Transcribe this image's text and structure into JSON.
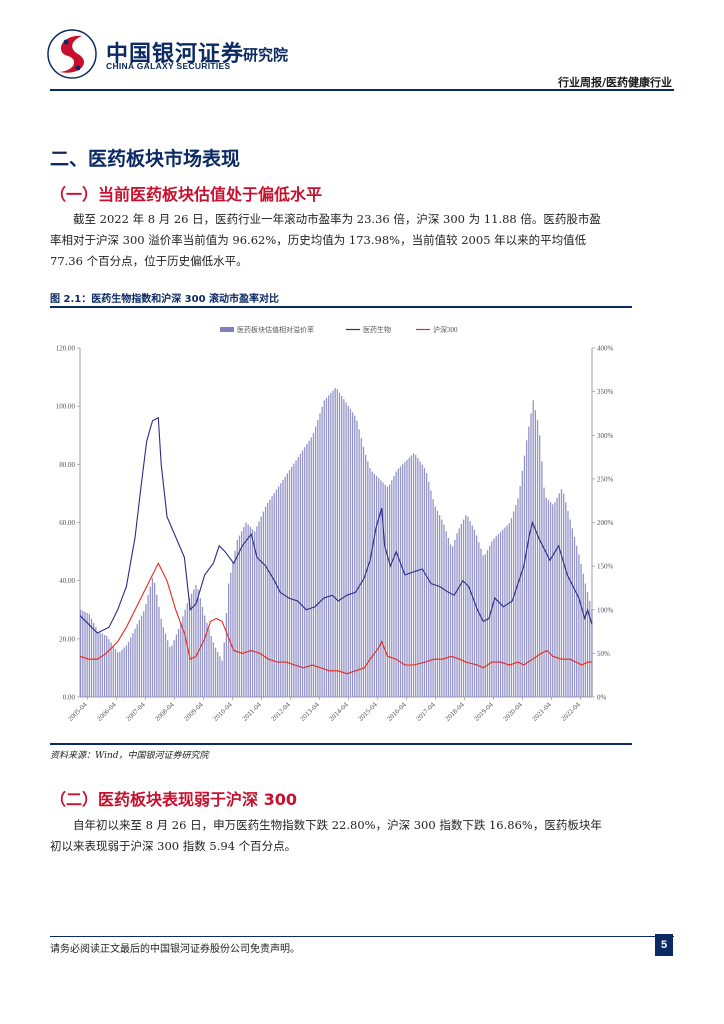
{
  "header": {
    "brand_cn": "中国银河证券",
    "brand_en": "CHINA GALAXY SECURITIES",
    "institute": "研究院",
    "category": "行业周报/医药健康行业"
  },
  "section": {
    "title": "二、医药板块市场表现",
    "sub1": {
      "title": "（一）当前医药板块估值处于偏低水平",
      "paragraph": "截至 2022 年 8 月 26 日，医药行业一年滚动市盈率为 23.36 倍，沪深 300 为 11.88 倍。医药股市盈率相对于沪深 300 溢价率当前值为 96.62%，历史均值为 173.98%，当前值较 2005 年以来的平均值低 77.36 个百分点，位于历史偏低水平。"
    },
    "figure": {
      "title": "图 2.1：医药生物指数和沪深 300 滚动市盈率对比",
      "source": "资料来源：Wind，中国银河证券研究院"
    },
    "sub2": {
      "title": "（二）医药板块表现弱于沪深 300",
      "paragraph": "自年初以来至 8 月 26 日，申万医药生物指数下跌 22.80%，沪深 300 指数下跌 16.86%，医药板块年初以来表现弱于沪深 300 指数 5.94 个百分点。"
    }
  },
  "chart_data": {
    "type": "bar+line",
    "legend": [
      "医药板块估值相对溢价率",
      "医药生物",
      "沪深300"
    ],
    "legend_position": "top",
    "colors": {
      "premium": "#8080c0",
      "pharma": "#2b2b8a",
      "hs300": "#e8291c"
    },
    "y_left": {
      "ticks": [
        "0.00",
        "20.00",
        "40.00",
        "60.00",
        "80.00",
        "100.00",
        "120.00"
      ],
      "lim": [
        0,
        120
      ]
    },
    "y_right": {
      "ticks": [
        "0%",
        "50%",
        "100%",
        "150%",
        "200%",
        "250%",
        "300%",
        "350%",
        "400%"
      ],
      "lim": [
        0,
        400
      ]
    },
    "x_ticks": [
      "2005-04",
      "2006-04",
      "2007-04",
      "2008-04",
      "2009-04",
      "2010-04",
      "2011-04",
      "2012-04",
      "2013-04",
      "2014-04",
      "2015-04",
      "2016-04",
      "2017-04",
      "2018-04",
      "2019-04",
      "2020-04",
      "2021-04",
      "2022-04"
    ],
    "x_range": [
      2005.0,
      2022.65
    ],
    "pharma_points": [
      [
        2005.0,
        28
      ],
      [
        2005.3,
        25
      ],
      [
        2005.6,
        22
      ],
      [
        2006.0,
        24
      ],
      [
        2006.3,
        30
      ],
      [
        2006.6,
        38
      ],
      [
        2006.9,
        55
      ],
      [
        2007.1,
        72
      ],
      [
        2007.3,
        88
      ],
      [
        2007.5,
        95
      ],
      [
        2007.7,
        96
      ],
      [
        2007.8,
        80
      ],
      [
        2008.0,
        62
      ],
      [
        2008.3,
        55
      ],
      [
        2008.6,
        48
      ],
      [
        2008.8,
        30
      ],
      [
        2009.0,
        32
      ],
      [
        2009.3,
        42
      ],
      [
        2009.6,
        46
      ],
      [
        2009.8,
        52
      ],
      [
        2010.0,
        50
      ],
      [
        2010.3,
        46
      ],
      [
        2010.6,
        52
      ],
      [
        2010.9,
        56
      ],
      [
        2011.1,
        48
      ],
      [
        2011.4,
        45
      ],
      [
        2011.7,
        40
      ],
      [
        2011.9,
        36
      ],
      [
        2012.2,
        34
      ],
      [
        2012.5,
        33
      ],
      [
        2012.8,
        30
      ],
      [
        2013.1,
        31
      ],
      [
        2013.4,
        34
      ],
      [
        2013.7,
        35
      ],
      [
        2013.9,
        33
      ],
      [
        2014.2,
        35
      ],
      [
        2014.5,
        36
      ],
      [
        2014.8,
        41
      ],
      [
        2015.0,
        47
      ],
      [
        2015.2,
        58
      ],
      [
        2015.4,
        65
      ],
      [
        2015.5,
        52
      ],
      [
        2015.7,
        45
      ],
      [
        2015.9,
        50
      ],
      [
        2016.2,
        42
      ],
      [
        2016.5,
        43
      ],
      [
        2016.8,
        44
      ],
      [
        2017.1,
        39
      ],
      [
        2017.4,
        38
      ],
      [
        2017.7,
        36
      ],
      [
        2017.9,
        35
      ],
      [
        2018.2,
        40
      ],
      [
        2018.4,
        38
      ],
      [
        2018.7,
        30
      ],
      [
        2018.9,
        26
      ],
      [
        2019.1,
        27
      ],
      [
        2019.3,
        34
      ],
      [
        2019.6,
        31
      ],
      [
        2019.9,
        33
      ],
      [
        2020.1,
        39
      ],
      [
        2020.3,
        45
      ],
      [
        2020.5,
        56
      ],
      [
        2020.6,
        60
      ],
      [
        2020.8,
        55
      ],
      [
        2021.0,
        51
      ],
      [
        2021.2,
        47
      ],
      [
        2021.5,
        52
      ],
      [
        2021.8,
        42
      ],
      [
        2022.0,
        38
      ],
      [
        2022.2,
        34
      ],
      [
        2022.4,
        27
      ],
      [
        2022.5,
        30
      ],
      [
        2022.65,
        25
      ]
    ],
    "hs300_points": [
      [
        2005.0,
        14
      ],
      [
        2005.3,
        13
      ],
      [
        2005.6,
        13
      ],
      [
        2005.9,
        15
      ],
      [
        2006.3,
        19
      ],
      [
        2006.6,
        24
      ],
      [
        2006.9,
        30
      ],
      [
        2007.2,
        36
      ],
      [
        2007.5,
        42
      ],
      [
        2007.7,
        46
      ],
      [
        2007.8,
        44
      ],
      [
        2008.0,
        40
      ],
      [
        2008.3,
        30
      ],
      [
        2008.6,
        22
      ],
      [
        2008.8,
        13
      ],
      [
        2009.0,
        14
      ],
      [
        2009.3,
        20
      ],
      [
        2009.5,
        26
      ],
      [
        2009.7,
        27
      ],
      [
        2009.9,
        26
      ],
      [
        2010.1,
        21
      ],
      [
        2010.3,
        16
      ],
      [
        2010.6,
        15
      ],
      [
        2010.9,
        16
      ],
      [
        2011.2,
        15
      ],
      [
        2011.5,
        13
      ],
      [
        2011.8,
        12
      ],
      [
        2012.1,
        12
      ],
      [
        2012.4,
        11
      ],
      [
        2012.7,
        10
      ],
      [
        2013.0,
        11
      ],
      [
        2013.3,
        10
      ],
      [
        2013.6,
        9
      ],
      [
        2013.9,
        9
      ],
      [
        2014.2,
        8
      ],
      [
        2014.5,
        9
      ],
      [
        2014.8,
        10
      ],
      [
        2015.0,
        13
      ],
      [
        2015.3,
        17
      ],
      [
        2015.4,
        19
      ],
      [
        2015.6,
        14
      ],
      [
        2015.9,
        13
      ],
      [
        2016.2,
        11
      ],
      [
        2016.5,
        11
      ],
      [
        2016.9,
        12
      ],
      [
        2017.2,
        13
      ],
      [
        2017.5,
        13
      ],
      [
        2017.8,
        14
      ],
      [
        2018.1,
        13
      ],
      [
        2018.3,
        12
      ],
      [
        2018.7,
        11
      ],
      [
        2018.9,
        10
      ],
      [
        2019.2,
        12
      ],
      [
        2019.5,
        12
      ],
      [
        2019.8,
        11
      ],
      [
        2020.1,
        12
      ],
      [
        2020.3,
        11
      ],
      [
        2020.6,
        13
      ],
      [
        2020.9,
        15
      ],
      [
        2021.1,
        16
      ],
      [
        2021.3,
        14
      ],
      [
        2021.6,
        13
      ],
      [
        2021.9,
        13
      ],
      [
        2022.1,
        12
      ],
      [
        2022.3,
        11
      ],
      [
        2022.5,
        12
      ],
      [
        2022.65,
        12
      ]
    ],
    "premium_points": [
      [
        2005.0,
        100
      ],
      [
        2005.3,
        95
      ],
      [
        2005.6,
        75
      ],
      [
        2005.9,
        70
      ],
      [
        2006.3,
        50
      ],
      [
        2006.6,
        60
      ],
      [
        2006.9,
        80
      ],
      [
        2007.2,
        100
      ],
      [
        2007.5,
        140
      ],
      [
        2007.8,
        85
      ],
      [
        2008.1,
        55
      ],
      [
        2008.4,
        80
      ],
      [
        2008.7,
        110
      ],
      [
        2009.0,
        130
      ],
      [
        2009.3,
        90
      ],
      [
        2009.6,
        60
      ],
      [
        2009.9,
        40
      ],
      [
        2010.1,
        130
      ],
      [
        2010.4,
        180
      ],
      [
        2010.7,
        200
      ],
      [
        2011.0,
        190
      ],
      [
        2011.4,
        220
      ],
      [
        2011.8,
        240
      ],
      [
        2012.2,
        260
      ],
      [
        2012.6,
        280
      ],
      [
        2013.0,
        300
      ],
      [
        2013.4,
        340
      ],
      [
        2013.8,
        355
      ],
      [
        2014.1,
        340
      ],
      [
        2014.5,
        320
      ],
      [
        2014.8,
        280
      ],
      [
        2015.0,
        260
      ],
      [
        2015.3,
        250
      ],
      [
        2015.6,
        240
      ],
      [
        2015.9,
        260
      ],
      [
        2016.2,
        270
      ],
      [
        2016.5,
        280
      ],
      [
        2016.9,
        260
      ],
      [
        2017.2,
        220
      ],
      [
        2017.5,
        200
      ],
      [
        2017.8,
        170
      ],
      [
        2018.0,
        190
      ],
      [
        2018.3,
        210
      ],
      [
        2018.6,
        190
      ],
      [
        2018.9,
        160
      ],
      [
        2019.2,
        180
      ],
      [
        2019.5,
        190
      ],
      [
        2019.8,
        200
      ],
      [
        2020.1,
        230
      ],
      [
        2020.4,
        300
      ],
      [
        2020.6,
        340
      ],
      [
        2020.8,
        310
      ],
      [
        2021.0,
        230
      ],
      [
        2021.3,
        220
      ],
      [
        2021.6,
        240
      ],
      [
        2021.9,
        200
      ],
      [
        2022.2,
        160
      ],
      [
        2022.4,
        130
      ],
      [
        2022.65,
        97
      ]
    ]
  },
  "footer": {
    "note": "请务必阅读正文最后的中国银河证券股份公司免责声明。",
    "page": "5"
  }
}
